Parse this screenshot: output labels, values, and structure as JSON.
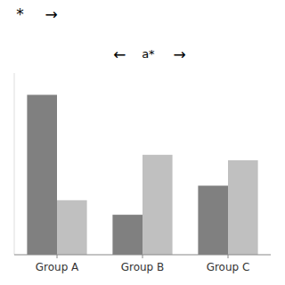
{
  "chart_data": {
    "type": "bar",
    "categories": [
      "Group A",
      "Group B",
      "Group C"
    ],
    "series": [
      {
        "color": "#808080",
        "values": [
          0.88,
          0.22,
          0.38
        ]
      },
      {
        "color": "#c0c0c0",
        "values": [
          0.3,
          0.55,
          0.52
        ]
      }
    ],
    "ylim": [
      0,
      1.0
    ],
    "tick_labels": "x",
    "grid": false,
    "annotations": [
      "*",
      "→",
      "←",
      "a*",
      "→"
    ]
  }
}
